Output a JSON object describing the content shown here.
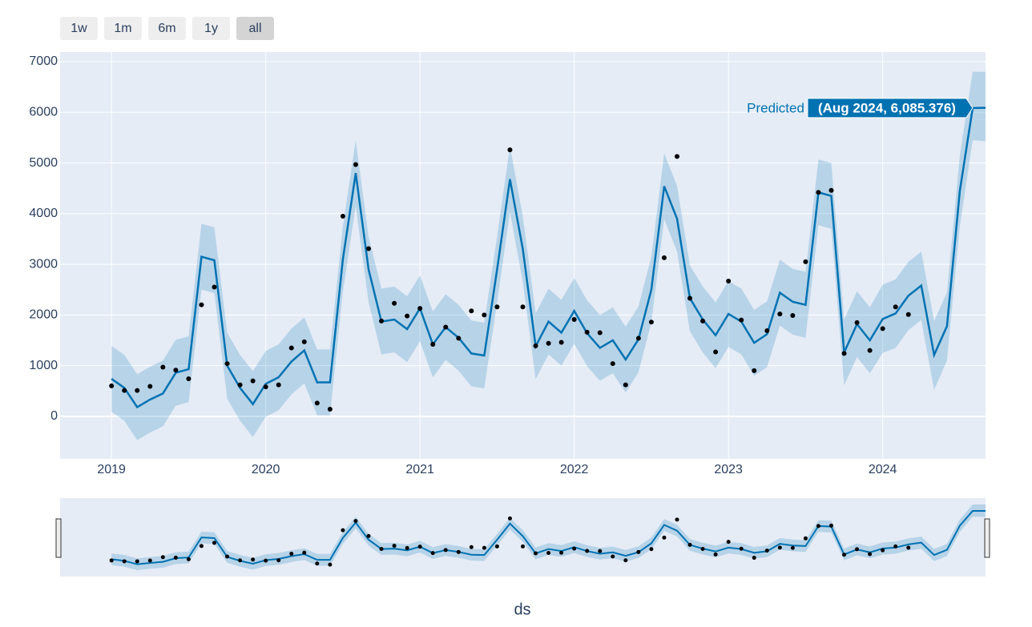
{
  "chart_data": {
    "type": "line",
    "range_selector": [
      "1w",
      "1m",
      "6m",
      "1y",
      "all"
    ],
    "active_button": 4,
    "x_label": "ds",
    "hover_label": "(Aug 2024, 6,085.376)",
    "hover_index": 67,
    "x": [
      "2019-01",
      "2019-02",
      "2019-03",
      "2019-04",
      "2019-05",
      "2019-06",
      "2019-07",
      "2019-08",
      "2019-09",
      "2019-10",
      "2019-11",
      "2019-12",
      "2020-01",
      "2020-02",
      "2020-03",
      "2020-04",
      "2020-05",
      "2020-06",
      "2020-07",
      "2020-08",
      "2020-09",
      "2020-10",
      "2020-11",
      "2020-12",
      "2021-01",
      "2021-02",
      "2021-03",
      "2021-04",
      "2021-05",
      "2021-06",
      "2021-07",
      "2021-08",
      "2021-09",
      "2021-10",
      "2021-11",
      "2021-12",
      "2022-01",
      "2022-02",
      "2022-03",
      "2022-04",
      "2022-05",
      "2022-06",
      "2022-07",
      "2022-08",
      "2022-09",
      "2022-10",
      "2022-11",
      "2022-12",
      "2023-01",
      "2023-02",
      "2023-03",
      "2023-04",
      "2023-05",
      "2023-06",
      "2023-07",
      "2023-08",
      "2023-09",
      "2023-10",
      "2023-11",
      "2023-12",
      "2024-01",
      "2024-02",
      "2024-03",
      "2024-04",
      "2024-05",
      "2024-06",
      "2024-07",
      "2024-08",
      "2024-09"
    ],
    "series": [
      {
        "name": "Predicted",
        "color": "#0072B2",
        "values": [
          740,
          560,
          180,
          330,
          450,
          860,
          930,
          3150,
          3080,
          1000,
          560,
          240,
          640,
          770,
          1080,
          1300,
          670,
          670,
          3100,
          4800,
          2900,
          1870,
          1910,
          1720,
          2130,
          1420,
          1760,
          1550,
          1240,
          1200,
          2900,
          4680,
          3300,
          1380,
          1870,
          1650,
          2080,
          1640,
          1350,
          1500,
          1120,
          1520,
          2500,
          4540,
          3900,
          2330,
          1910,
          1600,
          2020,
          1870,
          1450,
          1620,
          2440,
          2260,
          2200,
          4420,
          4350,
          1260,
          1820,
          1500,
          1920,
          2030,
          2380,
          2580,
          1210,
          1780,
          4450,
          6085.376,
          6090
        ]
      },
      {
        "color": "rgba(0,114,178,0.2)",
        "values": [
          1390,
          1210,
          830,
          980,
          1100,
          1510,
          1580,
          3800,
          3730,
          1650,
          1210,
          890,
          1290,
          1420,
          1730,
          1950,
          1320,
          1320,
          3750,
          5450,
          3550,
          2520,
          2560,
          2370,
          2780,
          2070,
          2410,
          2200,
          1890,
          1850,
          3550,
          5330,
          3950,
          2030,
          2520,
          2300,
          2730,
          2290,
          2000,
          2150,
          1770,
          2170,
          3150,
          5190,
          4550,
          2980,
          2560,
          2250,
          2670,
          2520,
          2100,
          2270,
          3090,
          2910,
          2850,
          5070,
          5000,
          1910,
          2470,
          2150,
          2600,
          2700,
          3050,
          3250,
          1880,
          2450,
          5150,
          6800,
          6800
        ]
      },
      {
        "color": "rgba(0,114,178,0.2)",
        "values": [
          90,
          -90,
          -470,
          -320,
          -200,
          210,
          280,
          2500,
          2430,
          350,
          -90,
          -410,
          -10,
          120,
          430,
          650,
          20,
          20,
          2450,
          4150,
          2250,
          1220,
          1260,
          1070,
          1480,
          770,
          1110,
          900,
          590,
          550,
          2250,
          4030,
          2650,
          730,
          1220,
          1000,
          1430,
          990,
          700,
          850,
          470,
          870,
          1850,
          3890,
          3250,
          1680,
          1260,
          950,
          1370,
          1220,
          800,
          970,
          1790,
          1610,
          1550,
          3770,
          3700,
          610,
          1170,
          850,
          1250,
          1350,
          1700,
          1900,
          520,
          1100,
          3750,
          5450,
          5430
        ]
      },
      {
        "color": "#000000",
        "values": [
          600,
          510,
          510,
          590,
          970,
          910,
          740,
          2200,
          2550,
          1040,
          620,
          700,
          580,
          620,
          1350,
          1470,
          260,
          140,
          3950,
          4970,
          3310,
          1880,
          2230,
          1980,
          2130,
          1420,
          1760,
          1540,
          2080,
          2000,
          2160,
          5260,
          2160,
          1390,
          1440,
          1460,
          1910,
          1660,
          1650,
          1040,
          620,
          1540,
          1860,
          3130,
          5130,
          2330,
          1880,
          1270,
          2670,
          1900,
          900,
          1690,
          2020,
          1990,
          3050,
          4420,
          4460,
          1240,
          1850,
          1300,
          1730,
          2160,
          2010,
          null,
          null,
          null,
          null,
          null,
          null
        ]
      }
    ],
    "xlim": [
      "2018-09",
      "2024-09"
    ],
    "xticks": [
      "2019",
      "2020",
      "2021",
      "2022",
      "2023",
      "2024"
    ],
    "ylim": [
      -840,
      7190
    ],
    "yticks": [
      0,
      1000,
      2000,
      3000,
      4000,
      5000,
      6000,
      7000
    ],
    "grid": true,
    "background": "#e5ecf6"
  }
}
